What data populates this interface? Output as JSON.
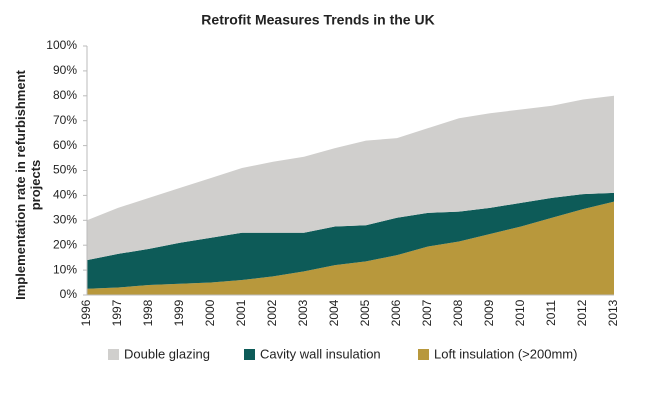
{
  "chart_data": {
    "type": "stacked-area",
    "title": "Retrofit Measures Trends in the UK",
    "y_label": "Implementation rate in refurbishment projects",
    "categories": [
      "1996",
      "1997",
      "1998",
      "1999",
      "2000",
      "2001",
      "2002",
      "2003",
      "2004",
      "2005",
      "2006",
      "2007",
      "2008",
      "2009",
      "2010",
      "2011",
      "2012",
      "2013"
    ],
    "series": [
      {
        "name": "Double glazing",
        "color": "#d0cfcd",
        "values": [
          16,
          18.5,
          20.5,
          22,
          24,
          26,
          28.5,
          30.5,
          31.5,
          34,
          32,
          34,
          37.5,
          38,
          37.5,
          37,
          38,
          39
        ]
      },
      {
        "name": "Cavity wall insulation",
        "color": "#0d5b58",
        "values": [
          11.5,
          13.5,
          14.5,
          16.5,
          18,
          19,
          17.5,
          15.5,
          15.5,
          14.5,
          15,
          13.5,
          12,
          10.5,
          9.5,
          8,
          6,
          3.5
        ]
      },
      {
        "name": "Loft insulation (>200mm)",
        "color": "#b8983c",
        "values": [
          2.5,
          3,
          4,
          4.5,
          5,
          6,
          7.5,
          9.5,
          12,
          13.5,
          16,
          19.5,
          21.5,
          24.5,
          27.5,
          31,
          34.5,
          37.5
        ]
      }
    ],
    "ylim": [
      0,
      100
    ],
    "yticks": [
      {
        "value": 0,
        "label": "0%"
      },
      {
        "value": 10,
        "label": "10%"
      },
      {
        "value": 20,
        "label": "20%"
      },
      {
        "value": 30,
        "label": "30%"
      },
      {
        "value": 40,
        "label": "40%"
      },
      {
        "value": 50,
        "label": "50%"
      },
      {
        "value": 60,
        "label": "60%"
      },
      {
        "value": 70,
        "label": "70%"
      },
      {
        "value": 80,
        "label": "80%"
      },
      {
        "value": 90,
        "label": "90%"
      },
      {
        "value": 100,
        "label": "100%"
      }
    ],
    "grid": false
  }
}
